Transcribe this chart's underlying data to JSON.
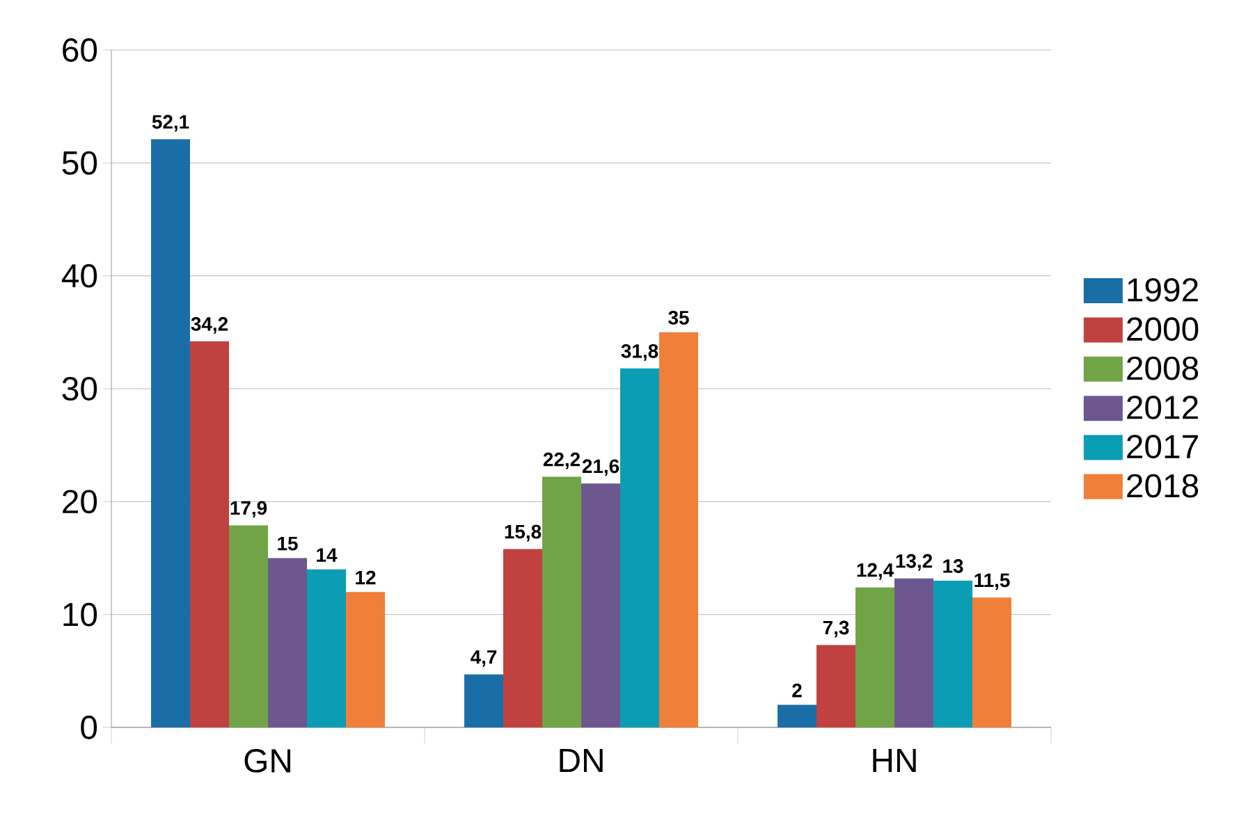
{
  "chart_data": {
    "type": "bar",
    "categories": [
      "GN",
      "DN",
      "HN"
    ],
    "series": [
      {
        "name": "1992",
        "color": "#1a6ea8",
        "values": [
          52.1,
          4.7,
          2
        ],
        "value_labels": [
          "52,1",
          "4,7",
          "2"
        ]
      },
      {
        "name": "2000",
        "color": "#c0413f",
        "values": [
          34.2,
          15.8,
          7.3
        ],
        "value_labels": [
          "34,2",
          "15,8",
          "7,3"
        ]
      },
      {
        "name": "2008",
        "color": "#71a347",
        "values": [
          17.9,
          22.2,
          12.4
        ],
        "value_labels": [
          "17,9",
          "22,2",
          "12,4"
        ]
      },
      {
        "name": "2012",
        "color": "#6c578f",
        "values": [
          15,
          21.6,
          13.2
        ],
        "value_labels": [
          "15",
          "21,6",
          "13,2"
        ]
      },
      {
        "name": "2017",
        "color": "#0b9db4",
        "values": [
          14,
          31.8,
          13
        ],
        "value_labels": [
          "14",
          "31,8",
          "13"
        ]
      },
      {
        "name": "2018",
        "color": "#f07f3a",
        "values": [
          12,
          35,
          11.5
        ],
        "value_labels": [
          "12",
          "35",
          "11,5"
        ]
      }
    ],
    "ylim": [
      0,
      60
    ],
    "yticks": [
      0,
      10,
      20,
      30,
      40,
      50,
      60
    ],
    "grid": "y",
    "legend": "right"
  }
}
